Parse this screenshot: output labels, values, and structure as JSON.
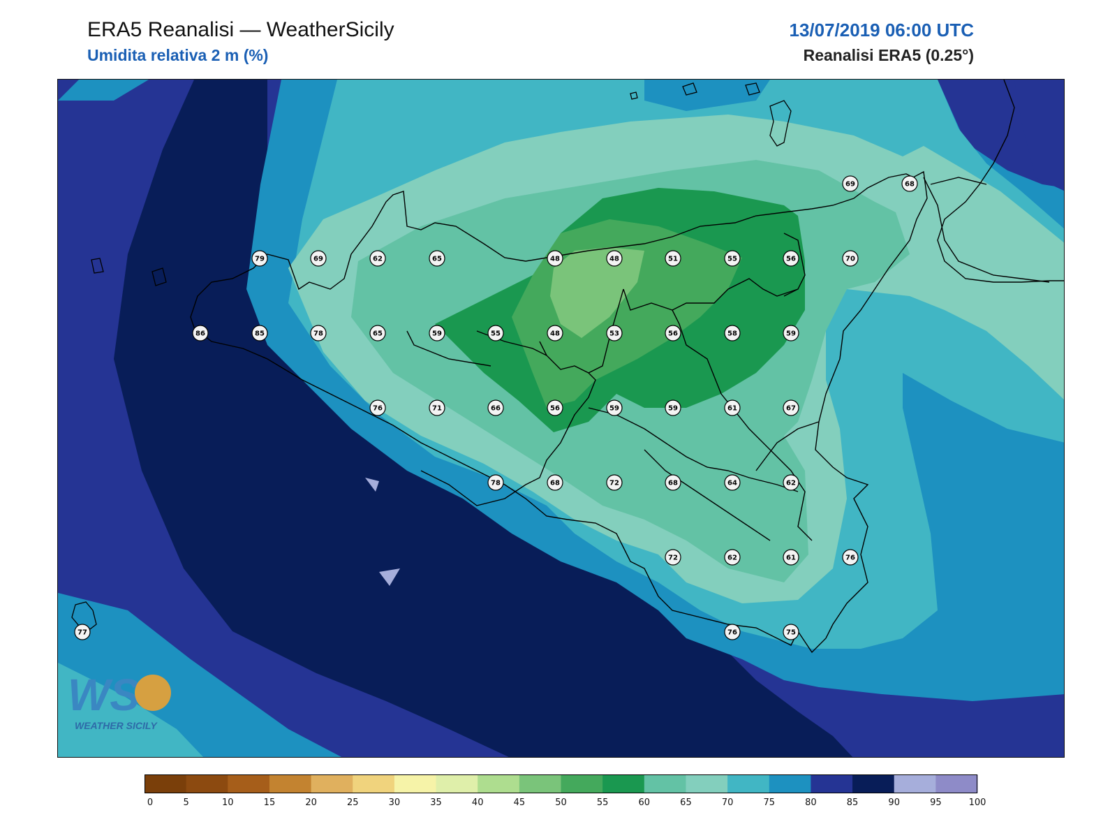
{
  "header": {
    "title": "ERA5 Reanalisi — WeatherSicily",
    "subtitle": "Umidita relativa 2 m (%)",
    "datetime": "13/07/2019 06:00 UTC",
    "source": "Reanalisi ERA5 (0.25°)"
  },
  "logo": {
    "mark": "WS",
    "text": "WEATHER SICILY"
  },
  "colors": {
    "land_border": "#000000",
    "station_fill": "#f4f4f4"
  },
  "colorbar": {
    "ticks": [
      "0",
      "5",
      "10",
      "15",
      "20",
      "25",
      "30",
      "35",
      "40",
      "45",
      "50",
      "55",
      "60",
      "65",
      "70",
      "75",
      "80",
      "85",
      "90",
      "95",
      "100"
    ],
    "colors": [
      "#7a3f0a",
      "#8c4a10",
      "#a65e1a",
      "#c38330",
      "#e0b05e",
      "#f0d37d",
      "#f6f3a8",
      "#dfefaa",
      "#aedd8f",
      "#7ac47a",
      "#44a95c",
      "#1a9850",
      "#63c2a5",
      "#83cfbd",
      "#41b6c4",
      "#1d91c0",
      "#253494",
      "#081d58",
      "#a6aedb",
      "#8e8bc8"
    ]
  },
  "stations": [
    {
      "value": "79"
    },
    {
      "value": "69"
    },
    {
      "value": "62"
    },
    {
      "value": "65"
    },
    {
      "value": "48"
    },
    {
      "value": "48"
    },
    {
      "value": "51"
    },
    {
      "value": "55"
    },
    {
      "value": "56"
    },
    {
      "value": "70"
    },
    {
      "value": "86"
    },
    {
      "value": "85"
    },
    {
      "value": "78"
    },
    {
      "value": "65"
    },
    {
      "value": "59"
    },
    {
      "value": "55"
    },
    {
      "value": "48"
    },
    {
      "value": "53"
    },
    {
      "value": "56"
    },
    {
      "value": "58"
    },
    {
      "value": "59"
    },
    {
      "value": "76"
    },
    {
      "value": "71"
    },
    {
      "value": "66"
    },
    {
      "value": "56"
    },
    {
      "value": "59"
    },
    {
      "value": "59"
    },
    {
      "value": "61"
    },
    {
      "value": "67"
    },
    {
      "value": "78"
    },
    {
      "value": "68"
    },
    {
      "value": "72"
    },
    {
      "value": "68"
    },
    {
      "value": "64"
    },
    {
      "value": "62"
    },
    {
      "value": "72"
    },
    {
      "value": "62"
    },
    {
      "value": "61"
    },
    {
      "value": "76"
    },
    {
      "value": "76"
    },
    {
      "value": "75"
    },
    {
      "value": "69"
    },
    {
      "value": "68"
    },
    {
      "value": "77"
    }
  ]
}
